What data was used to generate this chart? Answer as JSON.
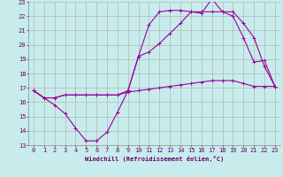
{
  "bg_color": "#c8ecec",
  "grid_color": "#aaaaaa",
  "line_color": "#990099",
  "xlim": [
    -0.5,
    23.5
  ],
  "ylim": [
    13,
    23
  ],
  "xticks": [
    0,
    1,
    2,
    3,
    4,
    5,
    6,
    7,
    8,
    9,
    10,
    11,
    12,
    13,
    14,
    15,
    16,
    17,
    18,
    19,
    20,
    21,
    22,
    23
  ],
  "yticks": [
    13,
    14,
    15,
    16,
    17,
    18,
    19,
    20,
    21,
    22,
    23
  ],
  "xlabel": "Windchill (Refroidissement éolien,°C)",
  "curve1_x": [
    0,
    1,
    2,
    3,
    4,
    5,
    6,
    7,
    8,
    9,
    10,
    11,
    12,
    13,
    14,
    15,
    16,
    17,
    18,
    19,
    20,
    21,
    22,
    23
  ],
  "curve1_y": [
    16.8,
    16.3,
    15.8,
    15.2,
    14.2,
    13.3,
    13.3,
    13.9,
    15.3,
    16.8,
    19.2,
    21.4,
    22.3,
    22.4,
    22.4,
    22.3,
    22.2,
    23.2,
    22.3,
    22.0,
    20.5,
    18.8,
    18.9,
    17.1
  ],
  "curve2_x": [
    0,
    1,
    2,
    3,
    4,
    5,
    6,
    7,
    8,
    9,
    10,
    11,
    12,
    13,
    14,
    15,
    16,
    17,
    18,
    19,
    20,
    21,
    22,
    23
  ],
  "curve2_y": [
    16.8,
    16.3,
    16.3,
    16.5,
    16.5,
    16.5,
    16.5,
    16.5,
    16.5,
    16.8,
    19.2,
    19.5,
    20.1,
    20.8,
    21.5,
    22.3,
    22.3,
    22.3,
    22.3,
    22.3,
    21.5,
    20.5,
    18.5,
    17.1
  ],
  "curve3_x": [
    0,
    1,
    2,
    3,
    4,
    5,
    6,
    7,
    8,
    9,
    10,
    11,
    12,
    13,
    14,
    15,
    16,
    17,
    18,
    19,
    20,
    21,
    22,
    23
  ],
  "curve3_y": [
    16.8,
    16.3,
    16.3,
    16.5,
    16.5,
    16.5,
    16.5,
    16.5,
    16.5,
    16.7,
    16.8,
    16.9,
    17.0,
    17.1,
    17.2,
    17.3,
    17.4,
    17.5,
    17.5,
    17.5,
    17.3,
    17.1,
    17.1,
    17.1
  ],
  "xlabel_fontsize": 5,
  "tick_fontsize": 5
}
